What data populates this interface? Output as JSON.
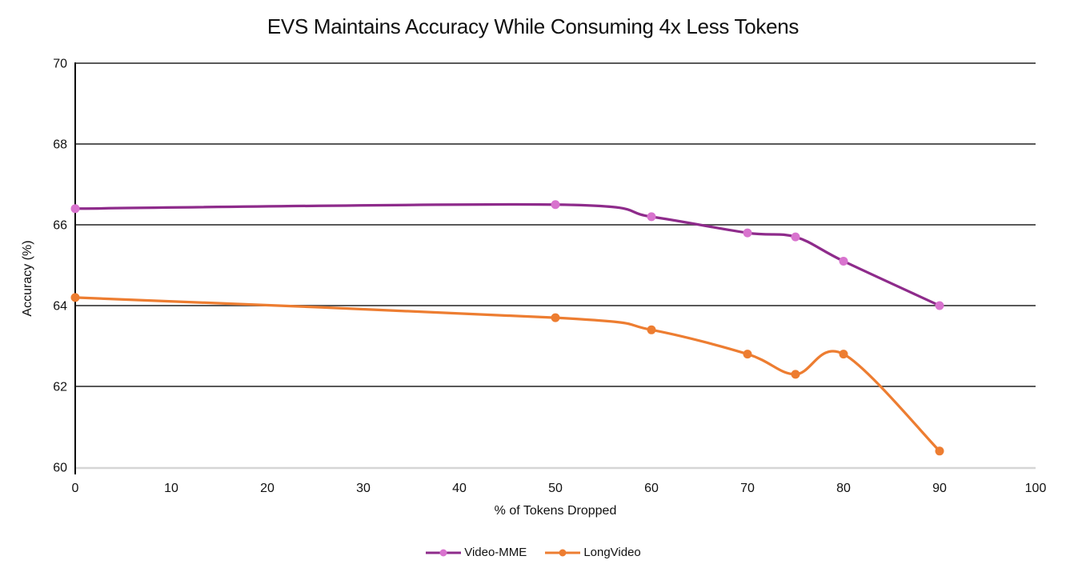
{
  "title": "EVS Maintains Accuracy While Consuming 4x Less Tokens",
  "chart_data": {
    "type": "line",
    "title": "EVS Maintains Accuracy While Consuming 4x Less Tokens",
    "xlabel": "% of Tokens Dropped",
    "ylabel": "Accuracy (%)",
    "x": [
      0,
      50,
      60,
      70,
      75,
      80,
      90
    ],
    "series": [
      {
        "name": "Video-MME",
        "color": "#8E2B8B",
        "marker_color": "#D873CE",
        "values": [
          66.4,
          66.5,
          66.2,
          65.8,
          65.7,
          65.1,
          64.0
        ]
      },
      {
        "name": "LongVideo",
        "color": "#ED7D31",
        "marker_color": "#ED7D31",
        "values": [
          64.2,
          63.7,
          63.4,
          62.8,
          62.3,
          62.8,
          60.4
        ]
      }
    ],
    "xlim": [
      0,
      100
    ],
    "ylim": [
      60,
      70
    ],
    "x_ticks": [
      0,
      10,
      20,
      30,
      40,
      50,
      60,
      70,
      80,
      90,
      100
    ],
    "y_ticks": [
      60,
      62,
      64,
      66,
      68,
      70
    ],
    "grid": "horizontal",
    "smooth": true,
    "legend_position": "bottom",
    "colors": {
      "gridline": "#595959",
      "x_axis_line": "#D6D6D6",
      "y_axis_line": "#000000",
      "text": "#111111"
    }
  }
}
